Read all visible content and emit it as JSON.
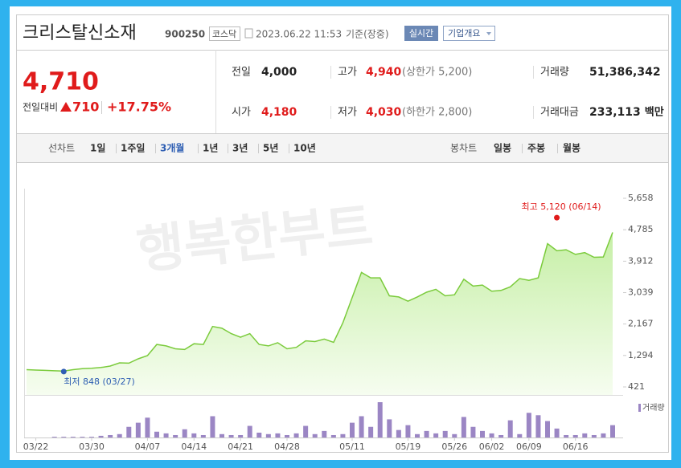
{
  "header": {
    "title": "크리스탈신소재",
    "code": "900250",
    "market": "코스닥",
    "datetime": "2023.06.22 11:53",
    "basis": "기준(장중)",
    "realtime_button": "실시간",
    "company_button": "기업개요"
  },
  "quote": {
    "price": "4,710",
    "change_label": "전일대비",
    "change": "710",
    "change_pct": "+17.75%"
  },
  "stats": [
    {
      "label": "전일",
      "value": "4,000"
    },
    {
      "label": "고가",
      "value": "4,940",
      "note": "(상한가 5,200)"
    },
    {
      "label": "거래량",
      "value": "51,386,342"
    },
    {
      "label": "시가",
      "value": "4,180"
    },
    {
      "label": "저가",
      "value": "4,030",
      "note": "(하한가 2,800)"
    },
    {
      "label": "거래대금",
      "value": "233,113",
      "note": "백만"
    }
  ],
  "tabs": {
    "line_label": "선차트",
    "periods": [
      "1일",
      "1주일",
      "3개월",
      "1년",
      "3년",
      "5년",
      "10년"
    ],
    "active": "3개월",
    "candle_label": "봉차트",
    "candles": [
      "일봉",
      "주봉",
      "월봉"
    ]
  },
  "watermark": "행복한부트",
  "chart_data": {
    "type": "area",
    "categories": [
      null,
      "03/22",
      null,
      null,
      null,
      null,
      null,
      "03/30",
      null,
      null,
      null,
      null,
      null,
      "04/07",
      null,
      null,
      null,
      null,
      "04/14",
      null,
      null,
      null,
      null,
      "04/21",
      null,
      null,
      null,
      null,
      "04/28",
      null,
      null,
      null,
      null,
      null,
      null,
      "05/11",
      null,
      null,
      null,
      null,
      null,
      "05/19",
      null,
      null,
      null,
      null,
      "05/26",
      null,
      null,
      null,
      "06/02",
      null,
      null,
      null,
      "06/09",
      null,
      null,
      null,
      null,
      "06/16",
      null,
      null,
      null,
      null
    ],
    "values": [
      900,
      890,
      880,
      870,
      860,
      900,
      930,
      940,
      960,
      1000,
      1090,
      1080,
      1200,
      1290,
      1600,
      1560,
      1480,
      1460,
      1620,
      1600,
      2100,
      2050,
      1900,
      1800,
      1900,
      1600,
      1560,
      1650,
      1480,
      1520,
      1700,
      1680,
      1750,
      1660,
      2200,
      2900,
      3600,
      3450,
      3450,
      2950,
      2920,
      2800,
      2920,
      3050,
      3130,
      2950,
      2980,
      3410,
      3220,
      3250,
      3080,
      3100,
      3200,
      3430,
      3380,
      3450,
      4400,
      4200,
      4230,
      4100,
      4150,
      4020,
      4030,
      4710
    ],
    "color": "#7bcb3c",
    "ylim": [
      421,
      5658
    ],
    "yticks": [
      {
        "value": 421,
        "label": "421"
      },
      {
        "value": 1294,
        "label": "1,294"
      },
      {
        "value": 2167,
        "label": "2,167"
      },
      {
        "value": 3039,
        "label": "3,039"
      },
      {
        "value": 3912,
        "label": "3,912"
      },
      {
        "value": 4785,
        "label": "4,785"
      },
      {
        "value": 5658,
        "label": "5,658"
      }
    ],
    "volume": {
      "name": "거래량",
      "color": "#9b86c4",
      "values": [
        0,
        0,
        0,
        3,
        3,
        3,
        3,
        3,
        7,
        10,
        14,
        44,
        61,
        82,
        24,
        17,
        10,
        34,
        17,
        10,
        88,
        14,
        10,
        10,
        48,
        20,
        14,
        17,
        10,
        17,
        48,
        14,
        27,
        10,
        14,
        61,
        88,
        44,
        146,
        75,
        31,
        51,
        14,
        27,
        17,
        27,
        14,
        85,
        44,
        27,
        17,
        10,
        71,
        14,
        102,
        92,
        68,
        37,
        10,
        10,
        17,
        10,
        17,
        51
      ]
    },
    "annotations": [
      {
        "label": "최고 5,120 (06/14)",
        "value": 5120,
        "category_index": 57,
        "color": "#e01b1b"
      },
      {
        "label": "최저 848 (03/27)",
        "value": 848,
        "category_index": 4,
        "color": "#2f5fb3"
      }
    ]
  }
}
